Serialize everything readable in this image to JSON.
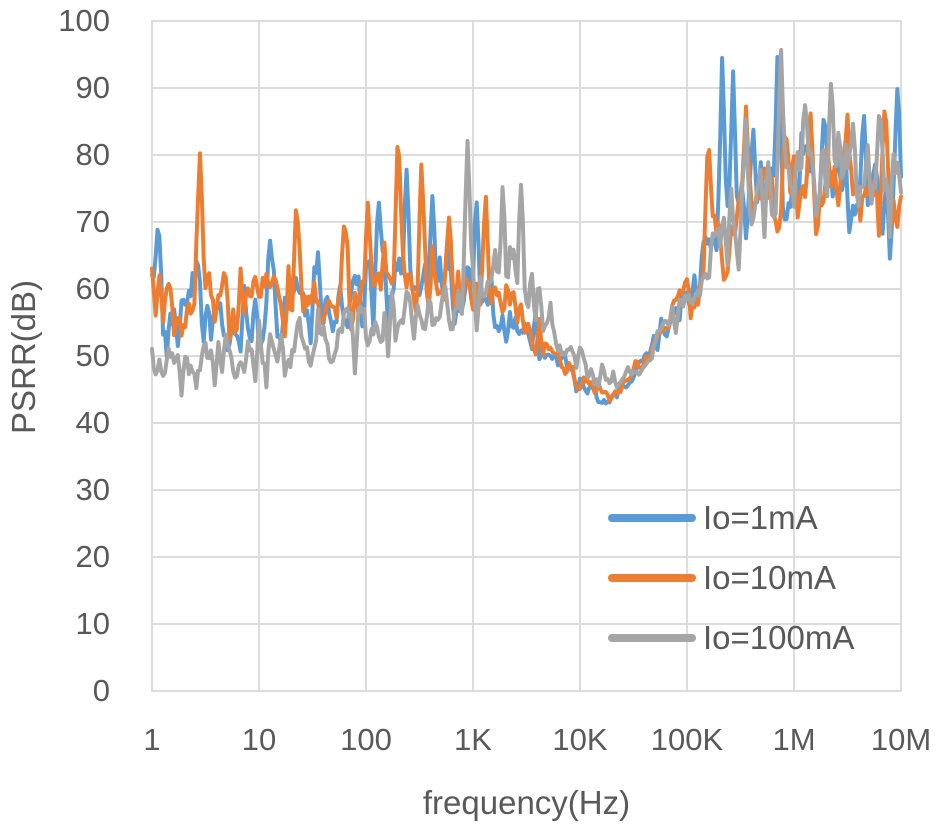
{
  "chart_data": {
    "type": "line",
    "title": "",
    "xlabel": "frequency(Hz)",
    "ylabel": "PSRR(dB)",
    "x_scale": "log10",
    "x_range_hz": [
      1,
      10000000
    ],
    "ylim": [
      0,
      100
    ],
    "grid": true,
    "legend_position": "inside-right",
    "gridline_color": "#DCDCDC",
    "text_color": "#595959",
    "y_ticks": [
      0,
      10,
      20,
      30,
      40,
      50,
      60,
      70,
      80,
      90,
      100
    ],
    "x_ticks": [
      {
        "label": "1",
        "log10": 0
      },
      {
        "label": "10",
        "log10": 1
      },
      {
        "label": "100",
        "log10": 2
      },
      {
        "label": "1K",
        "log10": 3
      },
      {
        "label": "10K",
        "log10": 4
      },
      {
        "label": "100K",
        "log10": 5
      },
      {
        "label": "1M",
        "log10": 6
      },
      {
        "label": "10M",
        "log10": 7
      }
    ],
    "series": [
      {
        "name": "Io=1mA",
        "color": "#5B9BD5",
        "seed": 11,
        "trend_log10hz_db": [
          [
            0,
            56
          ],
          [
            0.8,
            56
          ],
          [
            1.5,
            57
          ],
          [
            2,
            59
          ],
          [
            2.6,
            61
          ],
          [
            3,
            59
          ],
          [
            3.4,
            56
          ],
          [
            3.7,
            51
          ],
          [
            4,
            45.5
          ],
          [
            4.25,
            43
          ],
          [
            4.5,
            47
          ],
          [
            4.75,
            53
          ],
          [
            5,
            60
          ],
          [
            5.25,
            66
          ],
          [
            5.5,
            71
          ],
          [
            5.8,
            74
          ],
          [
            6.2,
            76
          ],
          [
            6.6,
            75
          ],
          [
            7,
            71
          ]
        ],
        "noise_amp_db": [
          [
            0,
            5.5
          ],
          [
            2.8,
            5.5
          ],
          [
            3.4,
            3.5
          ],
          [
            3.8,
            2
          ],
          [
            4.3,
            1.2
          ],
          [
            4.7,
            1.6
          ],
          [
            5,
            3.5
          ],
          [
            5.3,
            6.5
          ],
          [
            7,
            6.5
          ]
        ],
        "spikes_log10hz_db": [
          [
            0.06,
            71
          ],
          [
            0.42,
            66
          ],
          [
            1.1,
            68
          ],
          [
            1.55,
            66
          ],
          [
            2.12,
            73
          ],
          [
            2.38,
            78
          ],
          [
            2.62,
            74
          ],
          [
            3.03,
            74
          ],
          [
            5.33,
            96
          ],
          [
            5.43,
            93
          ],
          [
            5.62,
            84
          ],
          [
            5.85,
            97
          ],
          [
            6.28,
            86
          ],
          [
            6.65,
            87
          ],
          [
            6.97,
            92
          ]
        ]
      },
      {
        "name": "Io=10mA",
        "color": "#ED7D31",
        "seed": 22,
        "trend_log10hz_db": [
          [
            0,
            57.5
          ],
          [
            1,
            58
          ],
          [
            1.7,
            59
          ],
          [
            2,
            60
          ],
          [
            2.5,
            62
          ],
          [
            3,
            58.5
          ],
          [
            3.4,
            56
          ],
          [
            3.7,
            52
          ],
          [
            4,
            46
          ],
          [
            4.3,
            44
          ],
          [
            4.5,
            47.5
          ],
          [
            4.75,
            53
          ],
          [
            5,
            59
          ],
          [
            5.25,
            65
          ],
          [
            5.5,
            70
          ],
          [
            5.8,
            73
          ],
          [
            6.2,
            75
          ],
          [
            6.6,
            74
          ],
          [
            7,
            71.5
          ]
        ],
        "noise_amp_db": [
          [
            0,
            5
          ],
          [
            2.8,
            5.5
          ],
          [
            3.4,
            3.5
          ],
          [
            3.8,
            2
          ],
          [
            4.3,
            1
          ],
          [
            4.7,
            1.6
          ],
          [
            5,
            3.5
          ],
          [
            5.3,
            6
          ],
          [
            7,
            6
          ]
        ],
        "spikes_log10hz_db": [
          [
            0.45,
            81
          ],
          [
            1.35,
            74
          ],
          [
            1.8,
            71
          ],
          [
            2.02,
            74
          ],
          [
            2.3,
            85.5
          ],
          [
            2.52,
            80
          ],
          [
            2.78,
            72
          ],
          [
            3.12,
            74
          ],
          [
            5.2,
            84
          ],
          [
            5.55,
            88
          ],
          [
            5.92,
            84
          ],
          [
            6.15,
            88
          ],
          [
            6.5,
            86
          ],
          [
            6.85,
            88
          ]
        ]
      },
      {
        "name": "Io=100mA",
        "color": "#A5A5A5",
        "seed": 33,
        "trend_log10hz_db": [
          [
            0,
            48
          ],
          [
            0.7,
            49
          ],
          [
            1.3,
            51
          ],
          [
            2,
            53.5
          ],
          [
            2.5,
            56.5
          ],
          [
            2.9,
            59.5
          ],
          [
            3.2,
            61.5
          ],
          [
            3.5,
            60
          ],
          [
            3.8,
            53
          ],
          [
            4.1,
            48
          ],
          [
            4.35,
            46
          ],
          [
            4.6,
            49
          ],
          [
            4.85,
            55
          ],
          [
            5.1,
            61
          ],
          [
            5.35,
            67
          ],
          [
            5.6,
            72
          ],
          [
            5.9,
            75.5
          ],
          [
            6.3,
            77
          ],
          [
            6.7,
            75
          ],
          [
            7,
            74
          ]
        ],
        "noise_amp_db": [
          [
            0,
            4
          ],
          [
            2.6,
            5
          ],
          [
            3.2,
            6
          ],
          [
            3.6,
            4.5
          ],
          [
            3.9,
            2.2
          ],
          [
            4.4,
            1.2
          ],
          [
            4.8,
            1.8
          ],
          [
            5.1,
            3.5
          ],
          [
            5.4,
            6
          ],
          [
            7,
            6
          ]
        ],
        "spikes_log10hz_db": [
          [
            2.95,
            83
          ],
          [
            3.28,
            77
          ],
          [
            3.45,
            76
          ],
          [
            5.55,
            86
          ],
          [
            5.88,
            96
          ],
          [
            6.1,
            88
          ],
          [
            6.35,
            92
          ],
          [
            6.55,
            85
          ],
          [
            6.8,
            88
          ]
        ]
      }
    ]
  }
}
